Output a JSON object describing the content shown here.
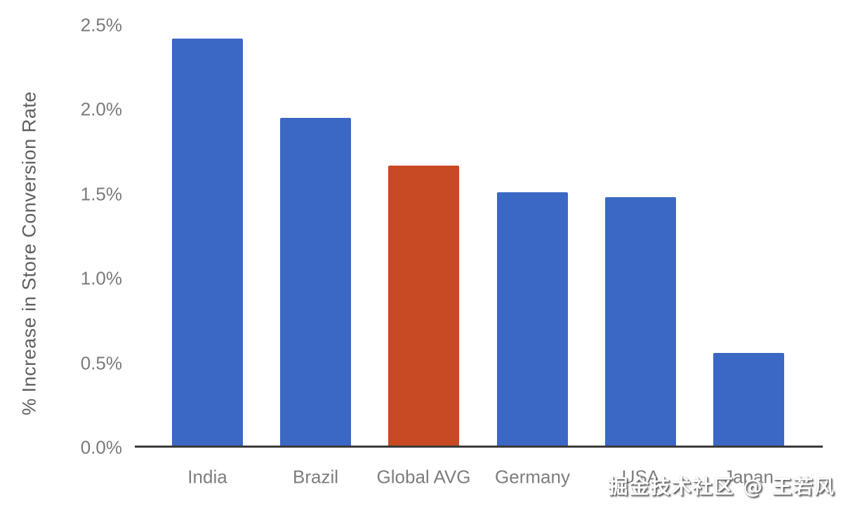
{
  "chart_data": {
    "type": "bar",
    "title": "",
    "xlabel": "",
    "ylabel": "% Increase in Store Conversion Rate",
    "categories": [
      "India",
      "Brazil",
      "Global AVG",
      "Germany",
      "USA",
      "Japan"
    ],
    "values": [
      2.42,
      1.95,
      1.67,
      1.51,
      1.48,
      0.56
    ],
    "value_unit": "%",
    "bar_colors": [
      "#3B68C4",
      "#3B68C4",
      "#C84A24",
      "#3B68C4",
      "#3B68C4",
      "#3B68C4"
    ],
    "highlighted_category": "Global AVG",
    "ylim": [
      0,
      2.5
    ],
    "yticks": [
      {
        "value": 0.0,
        "label": "0.0%"
      },
      {
        "value": 0.5,
        "label": "0.5%"
      },
      {
        "value": 1.0,
        "label": "1.0%"
      },
      {
        "value": 1.5,
        "label": "1.5%"
      },
      {
        "value": 2.0,
        "label": "2.0%"
      },
      {
        "value": 2.5,
        "label": "2.5%"
      }
    ],
    "grid": false,
    "legend": "none"
  },
  "colors": {
    "bar_default": "#3B68C4",
    "bar_highlight": "#C84A24",
    "tick_label": "#7A7A7A",
    "category_label": "#7D7D7D",
    "axis_title": "#5F5F5F",
    "axis_line": "#3A3A3A",
    "background": "#FFFFFF"
  },
  "watermark": {
    "text": "掘金技术社区 @ 王若风"
  }
}
